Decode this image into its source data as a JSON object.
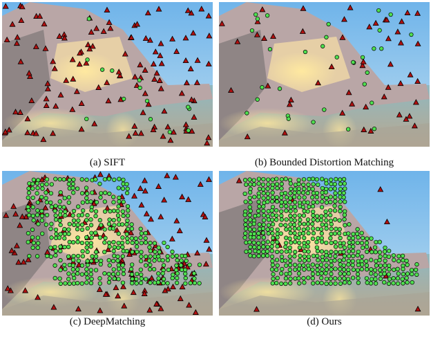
{
  "figure": {
    "panels": [
      {
        "caption": "(a) SIFT"
      },
      {
        "caption": "(b) Bounded Distortion Matching"
      },
      {
        "caption": "(c) DeepMatching"
      },
      {
        "caption": "(d) Ours"
      }
    ]
  }
}
